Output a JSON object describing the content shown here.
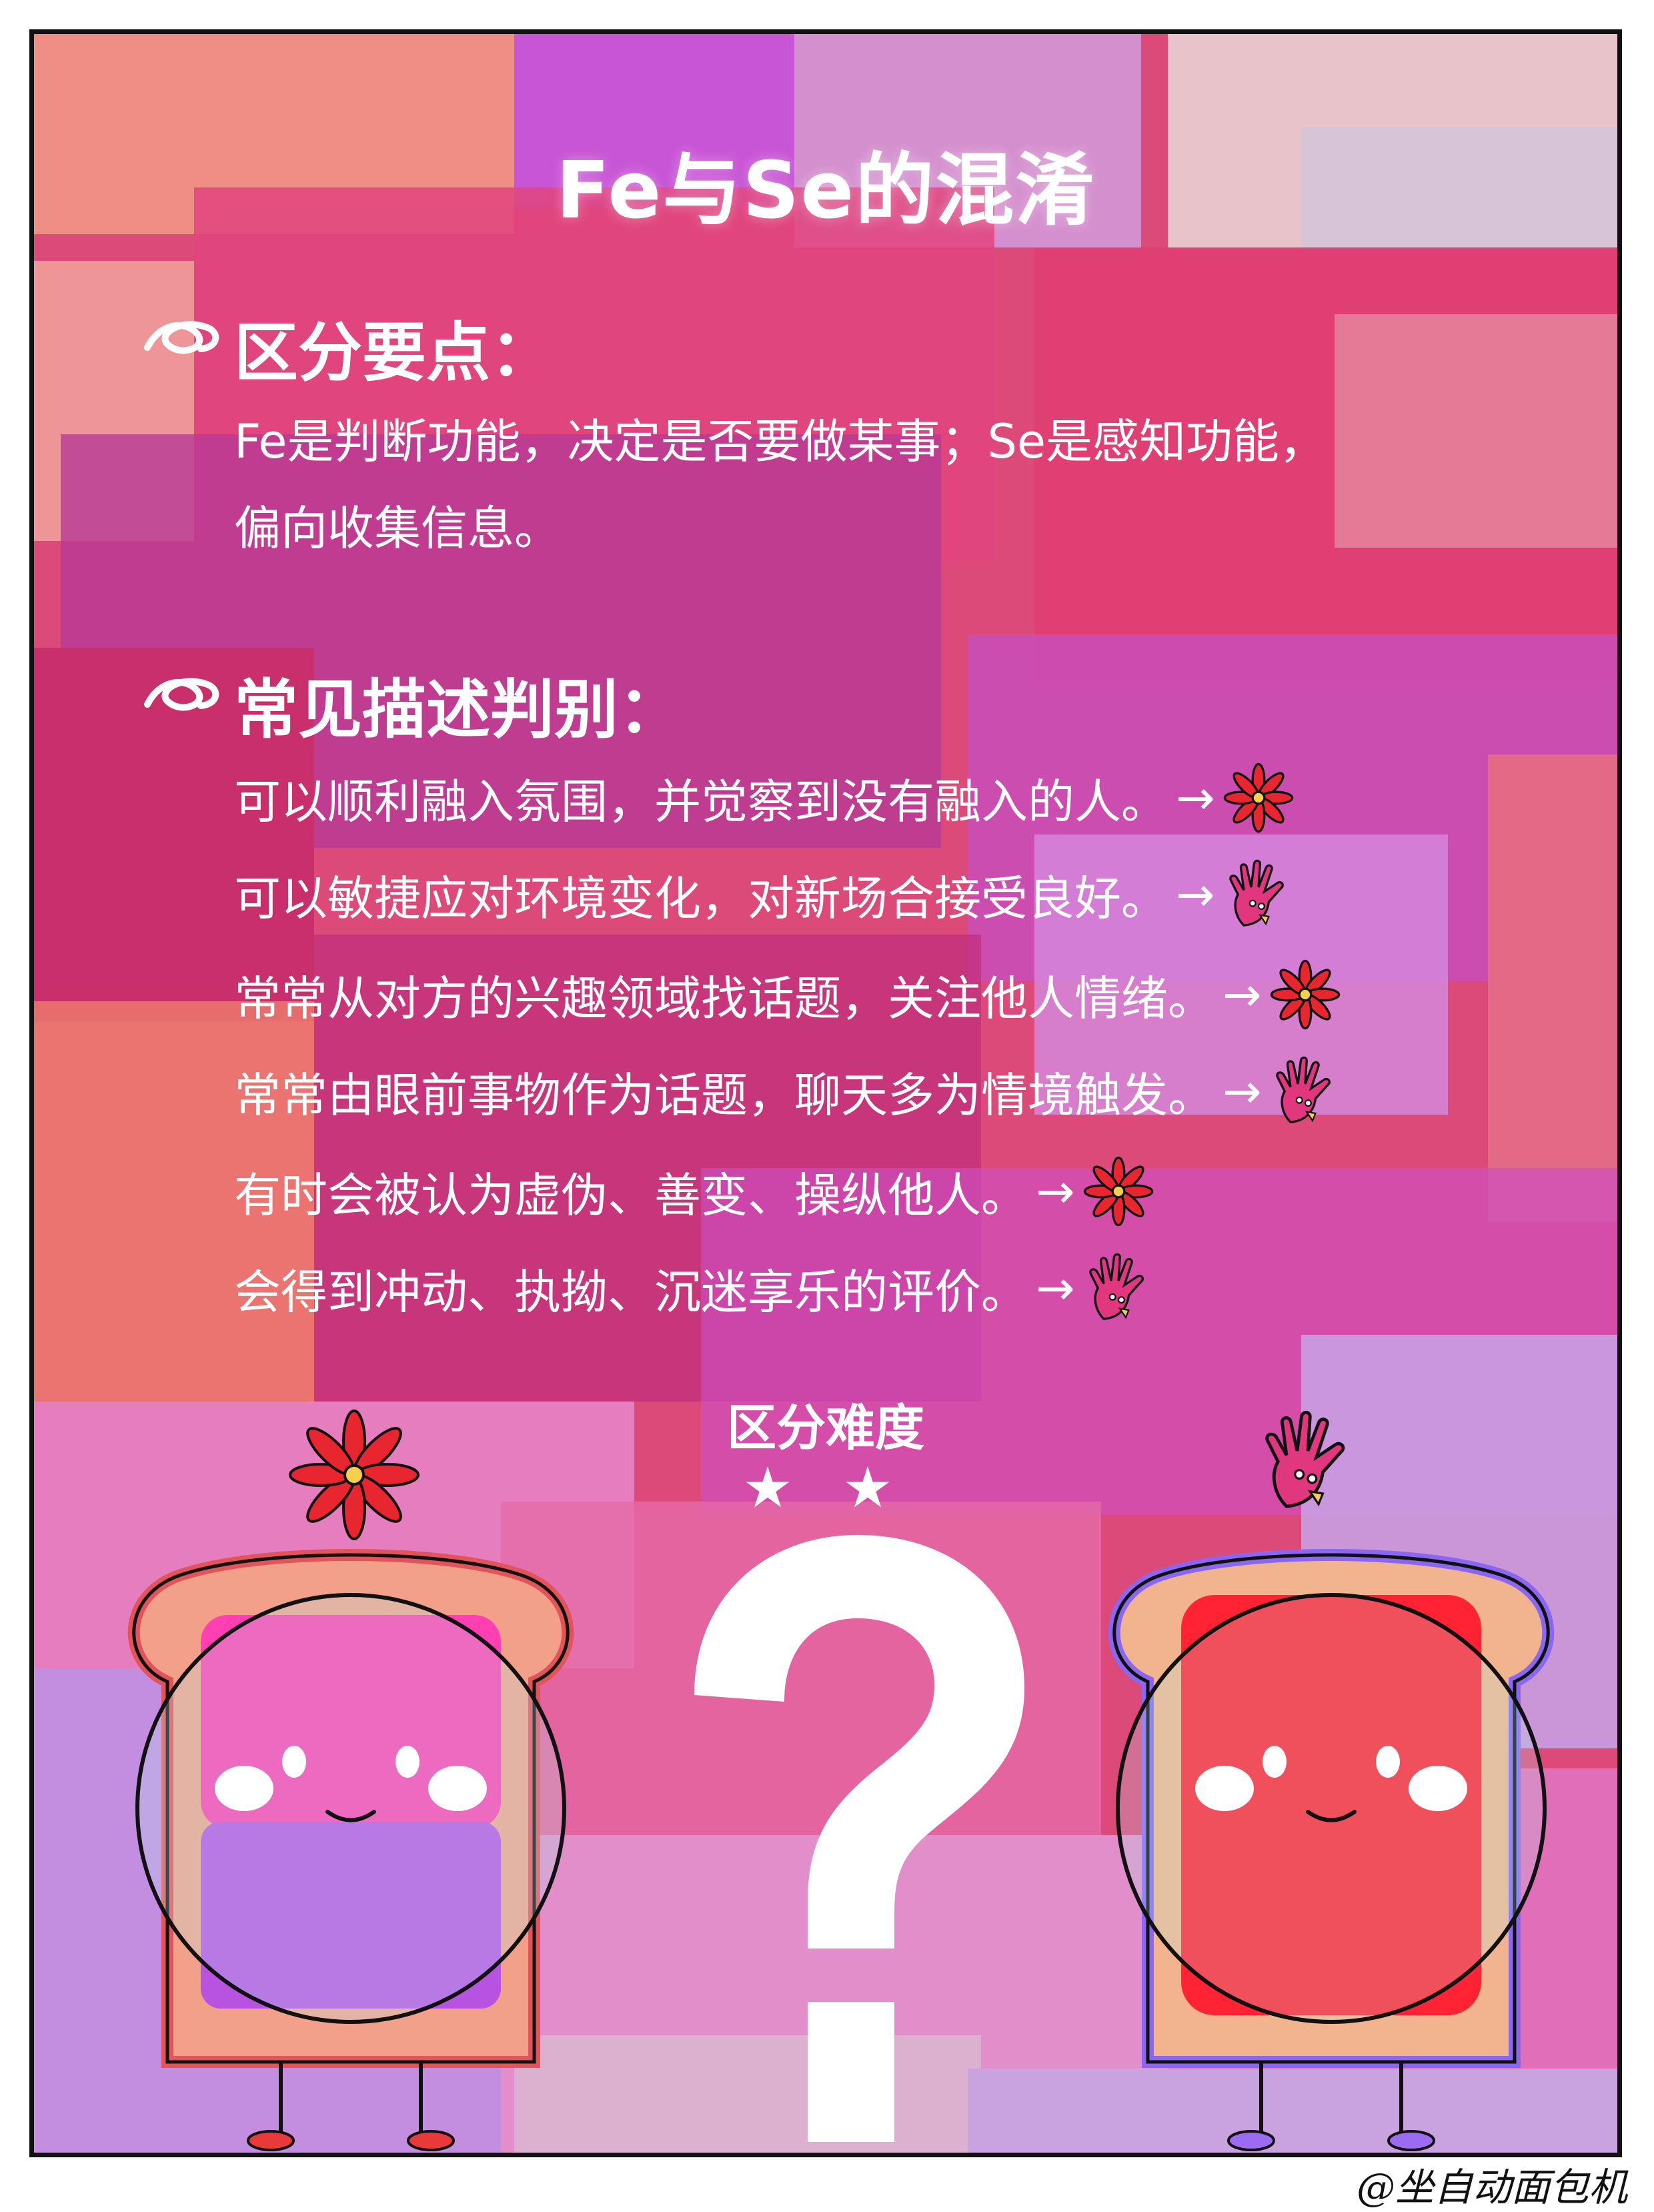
{
  "title": "Fe与Se的混淆",
  "section1": {
    "heading": "区分要点：",
    "lines": [
      "Fe是判断功能，决定是否要做某事；Se是感知功能，",
      "偏向收集信息。"
    ]
  },
  "section2": {
    "heading": "常见描述判别：",
    "items": [
      {
        "text": "可以顺利融入氛围，并觉察到没有融入的人。",
        "answer_icon": "flower-icon",
        "answer": "Fe"
      },
      {
        "text": "可以敏捷应对环境变化，对新场合接受良好。",
        "answer_icon": "hand-icon",
        "answer": "Se"
      },
      {
        "text": "常常从对方的兴趣领域找话题，关注他人情绪。",
        "answer_icon": "flower-icon",
        "answer": "Fe"
      },
      {
        "text": "常常由眼前事物作为话题，聊天多为情境触发。",
        "answer_icon": "hand-icon",
        "answer": "Se"
      },
      {
        "text": "有时会被认为虚伪、善变、操纵他人。",
        "answer_icon": "flower-icon",
        "answer": "Fe"
      },
      {
        "text": "会得到冲动、执拗、沉迷享乐的评价。",
        "answer_icon": "hand-icon",
        "answer": "Se"
      }
    ],
    "arrow": "→"
  },
  "difficulty": {
    "label": "区分难度",
    "stars": "★ ★",
    "rating": 2
  },
  "signature": "@坐自动面包机",
  "colors": {
    "background": "#d9406f",
    "text": "#ffffff",
    "fe_toast_crust": "#e2535a",
    "fe_jam": "#ff3fb2",
    "se_toast_crust": "#8a67f0",
    "se_jam": "#ff2333",
    "flower": "#e8262f",
    "hand": "#e0377f"
  }
}
